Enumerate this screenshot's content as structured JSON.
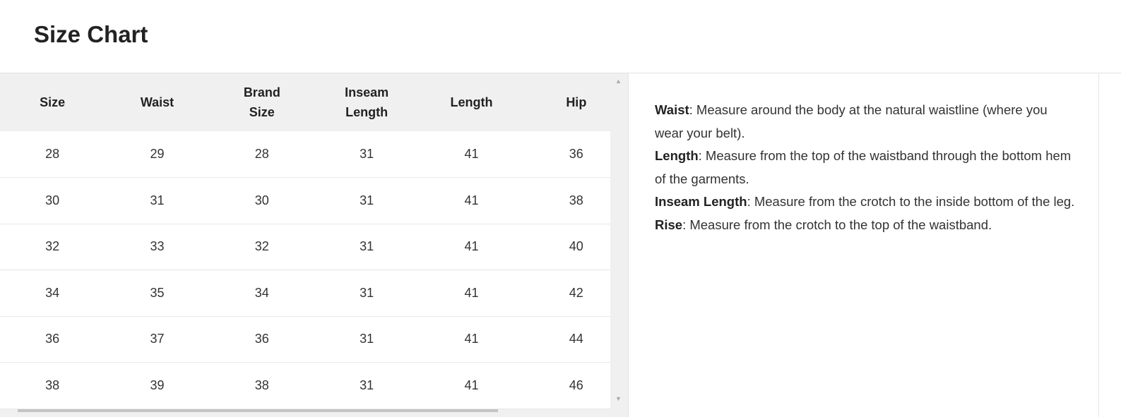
{
  "title": "Size Chart",
  "table": {
    "headers": [
      "Size",
      "Waist",
      "Brand Size",
      "Inseam Length",
      "Length",
      "Hip"
    ],
    "rows": [
      [
        "28",
        "29",
        "28",
        "31",
        "41",
        "36"
      ],
      [
        "30",
        "31",
        "30",
        "31",
        "41",
        "38"
      ],
      [
        "32",
        "33",
        "32",
        "31",
        "41",
        "40"
      ],
      [
        "34",
        "35",
        "34",
        "31",
        "41",
        "42"
      ],
      [
        "36",
        "37",
        "36",
        "31",
        "41",
        "44"
      ],
      [
        "38",
        "39",
        "38",
        "31",
        "41",
        "46"
      ]
    ]
  },
  "guide": [
    {
      "term": "Waist",
      "text": ": Measure around the body at the natural waistline (where you wear your belt)."
    },
    {
      "term": "Length",
      "text": ": Measure from the top of the waistband through the bottom hem of the garments."
    },
    {
      "term": "Inseam Length",
      "text": ": Measure from the crotch to the inside bottom of the leg."
    },
    {
      "term": "Rise",
      "text": ": Measure from the crotch to the top of the waistband."
    }
  ],
  "icons": {
    "scroll_up": "triangle-up",
    "scroll_down": "triangle-down"
  }
}
